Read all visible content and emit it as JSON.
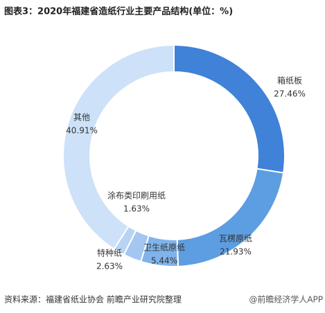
{
  "chart_data": {
    "type": "donut",
    "title": "图表3：2020年福建省造纸行业主要产品结构(单位：%)",
    "categories": [
      "箱纸板",
      "瓦楞原纸",
      "卫生纸原纸",
      "特种纸",
      "涂布类印刷用纸",
      "其他"
    ],
    "values": [
      27.46,
      21.93,
      5.44,
      2.63,
      1.63,
      40.91
    ],
    "value_labels": [
      "27.46%",
      "21.93%",
      "5.44%",
      "2.63%",
      "1.63%",
      "40.91%"
    ],
    "colors": [
      "#3f82d8",
      "#5d9de2",
      "#80b3ea",
      "#a3c7f0",
      "#b7d4f4",
      "#cde1f8"
    ],
    "source": "资料来源：福建省纸业协会 前瞻产业研究院整理",
    "watermark": "@前瞻经济学人APP"
  }
}
